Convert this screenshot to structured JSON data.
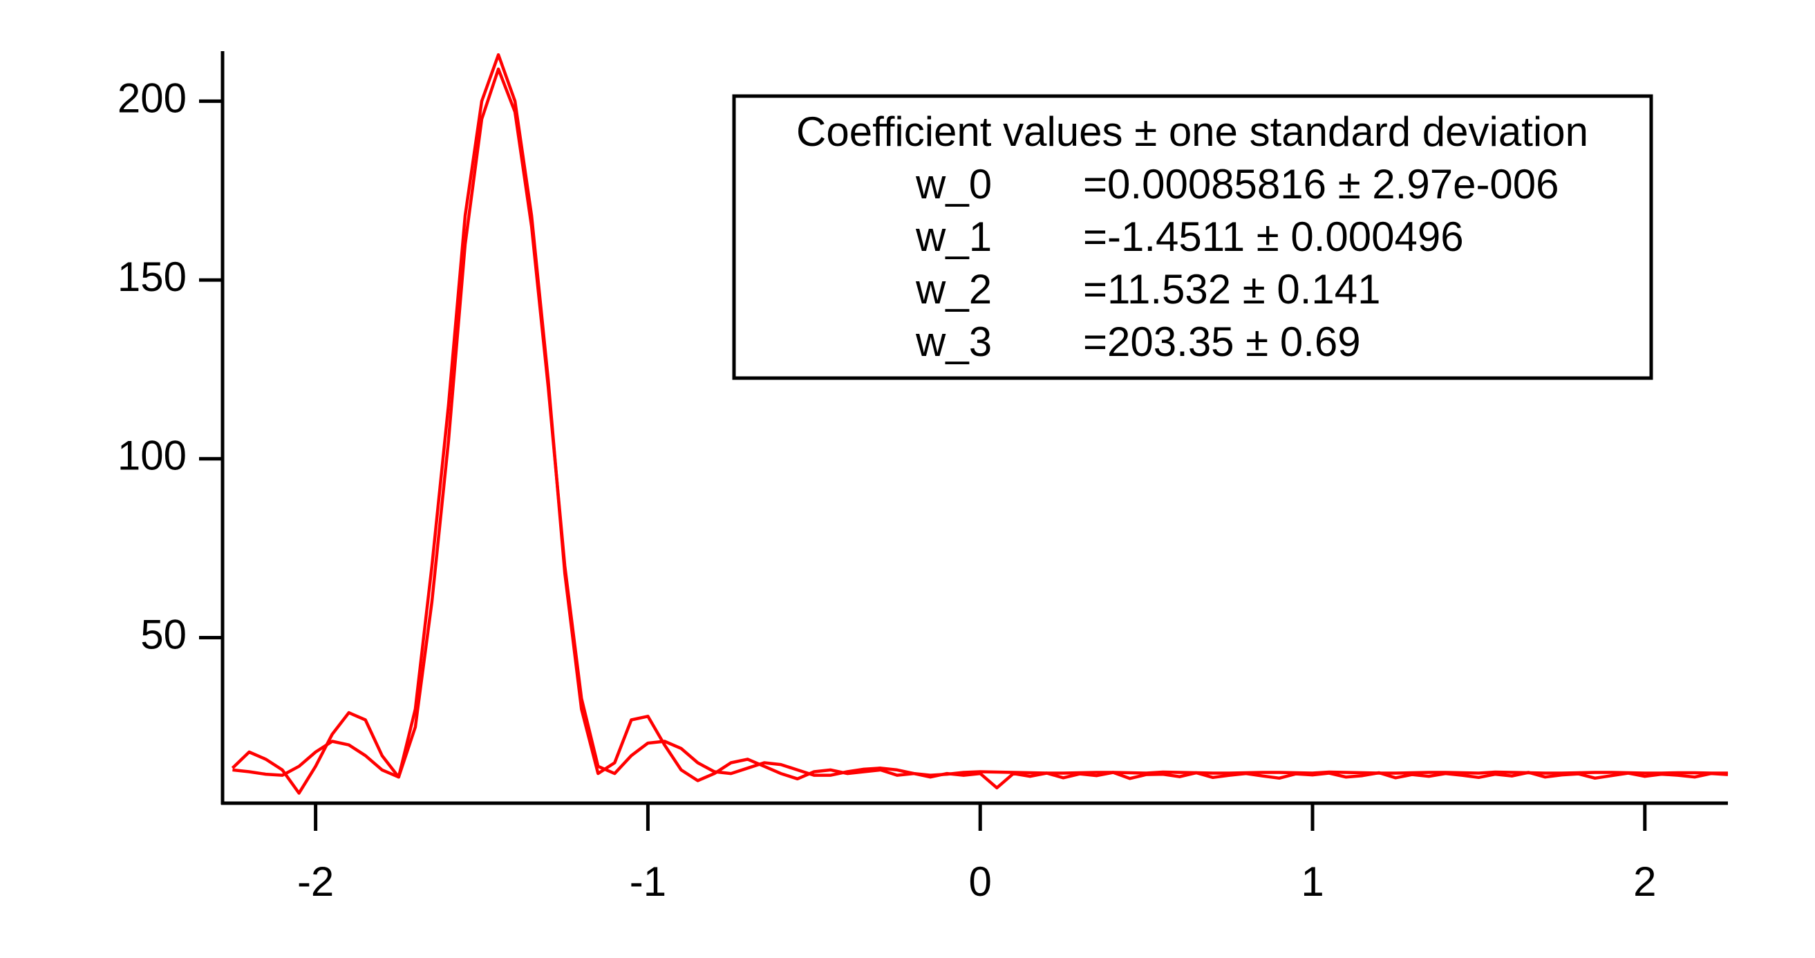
{
  "chart_data": {
    "type": "line",
    "x": [
      -2.25,
      -2.2,
      -2.15,
      -2.1,
      -2.05,
      -2,
      -1.95,
      -1.9,
      -1.85,
      -1.8,
      -1.75,
      -1.7,
      -1.65,
      -1.6,
      -1.55,
      -1.5,
      -1.45,
      -1.4,
      -1.35,
      -1.3,
      -1.25,
      -1.2,
      -1.15,
      -1.1,
      -1.05,
      -1,
      -0.95,
      -0.9,
      -0.85,
      -0.8,
      -0.75,
      -0.7,
      -0.65,
      -0.6,
      -0.55,
      -0.5,
      -0.45,
      -0.4,
      -0.35,
      -0.3,
      -0.25,
      -0.2,
      -0.15,
      -0.1,
      -0.05,
      0,
      0.05,
      0.1,
      0.15,
      0.2,
      0.25,
      0.3,
      0.35,
      0.4,
      0.45,
      0.5,
      0.55,
      0.6,
      0.65,
      0.7,
      0.75,
      0.8,
      0.85,
      0.9,
      0.95,
      1,
      1.05,
      1.1,
      1.15,
      1.2,
      1.25,
      1.3,
      1.35,
      1.4,
      1.45,
      1.5,
      1.55,
      1.6,
      1.65,
      1.7,
      1.75,
      1.8,
      1.85,
      1.9,
      1.95,
      2,
      2.05,
      2.1,
      2.15,
      2.2,
      2.25
    ],
    "series": [
      {
        "color": "#ff0000",
        "values": [
          13.5,
          18,
          16,
          13,
          6.5,
          14,
          23,
          29,
          27,
          17,
          11,
          30,
          70,
          115,
          168,
          200,
          213,
          200,
          168,
          122,
          68,
          30,
          12,
          15,
          27,
          28,
          20,
          13,
          10,
          12,
          15,
          16,
          14,
          12,
          10.5,
          12.5,
          13,
          12,
          12.5,
          13,
          11.5,
          12,
          11,
          12,
          11.5,
          12,
          8,
          12,
          11.2,
          12.1,
          10.8,
          11.9,
          11.4,
          12.3,
          10.6,
          11.7,
          11.8,
          11.1,
          12.2,
          10.9,
          11.5,
          12,
          11.3,
          10.7,
          11.9,
          11.6,
          12.1,
          11,
          11.4,
          12.2,
          10.8,
          11.7,
          11.2,
          12,
          11.5,
          10.9,
          11.8,
          11.3,
          12.3,
          11,
          11.6,
          11.9,
          10.7,
          11.4,
          12.1,
          11.2,
          11.8,
          11.5,
          11,
          12,
          11.7
        ]
      },
      {
        "color": "#ff0000",
        "values": [
          13,
          12.5,
          11.8,
          11.5,
          14,
          18,
          21,
          20,
          17,
          13,
          11,
          25,
          60,
          105,
          160,
          195,
          209,
          197,
          165,
          120,
          70,
          33,
          14,
          12,
          17,
          20.5,
          21,
          19,
          15,
          12.5,
          12,
          13.5,
          15,
          14.5,
          13,
          11.5,
          11.5,
          12.5,
          13.2,
          13.5,
          13,
          12,
          11.5,
          11.8,
          12.3,
          12.5,
          12.4,
          12.3,
          12.2,
          12.1,
          12.1,
          12.2,
          12.3,
          12.3,
          12.2,
          12.1,
          12.4,
          12.3,
          12.2,
          12.1,
          12.1,
          12.2,
          12.3,
          12.3,
          12.2,
          12.1,
          12.4,
          12.3,
          12.2,
          12.1,
          12.1,
          12.2,
          12.3,
          12.3,
          12.2,
          12.1,
          12.4,
          12.3,
          12.2,
          12.1,
          12.1,
          12.2,
          12.3,
          12.3,
          12.2,
          12.1,
          12.1,
          12.2,
          12.2,
          12.1,
          12.1
        ]
      }
    ],
    "xlim": [
      -2.28,
      2.25
    ],
    "ylim": [
      3.7,
      214
    ],
    "xticks": [
      -2,
      -1,
      0,
      1,
      2
    ],
    "yticks": [
      50,
      100,
      150,
      200
    ],
    "annotation": {
      "title": "Coefficient values ± one standard deviation",
      "rows": [
        {
          "name": "w_0",
          "value": "=0.00085816 ± 2.97e-006"
        },
        {
          "name": "w_1",
          "value": "=-1.4511 ± 0.000496"
        },
        {
          "name": "w_2",
          "value": "=11.532 ± 0.141"
        },
        {
          "name": "w_3",
          "value": "=203.35 ± 0.69"
        }
      ]
    }
  }
}
